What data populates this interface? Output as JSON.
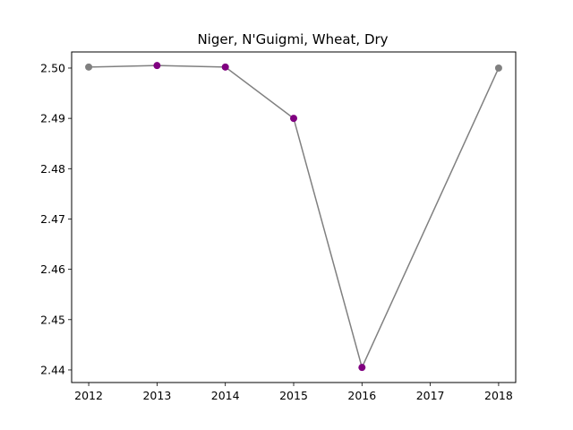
{
  "chart_data": {
    "type": "line",
    "title": "Niger, N'Guigmi, Wheat, Dry",
    "xlabel": "",
    "ylabel": "",
    "x": [
      2012,
      2013,
      2014,
      2015,
      2016,
      2018
    ],
    "series": [
      {
        "values": [
          2.5002,
          2.5005,
          2.5002,
          2.49,
          2.4405,
          2.5
        ],
        "line_color": "#808080",
        "point_colors": [
          "#808080",
          "#800080",
          "#800080",
          "#800080",
          "#800080",
          "#808080"
        ]
      }
    ],
    "xlim": [
      2011.75,
      2018.25
    ],
    "ylim": [
      2.4375,
      2.5032
    ],
    "xticks": [
      2012,
      2013,
      2014,
      2015,
      2016,
      2017,
      2018
    ],
    "xtick_labels": [
      "2012",
      "2013",
      "2014",
      "2015",
      "2016",
      "2017",
      "2018"
    ],
    "yticks": [
      2.44,
      2.45,
      2.46,
      2.47,
      2.48,
      2.49,
      2.5
    ],
    "ytick_labels": [
      "2.44",
      "2.45",
      "2.46",
      "2.47",
      "2.48",
      "2.49",
      "2.50"
    ],
    "grid": false,
    "legend": false
  }
}
